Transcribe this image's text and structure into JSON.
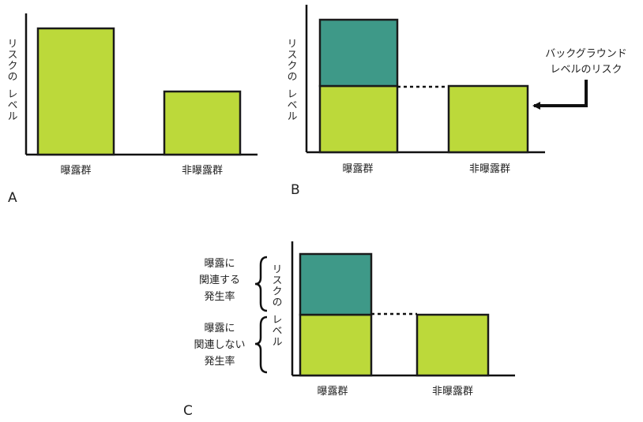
{
  "colors": {
    "exposure_unrelated": "#bcd93a",
    "exposure_related": "#3e9988",
    "axis": "#111111",
    "bar_stroke": "#1a1a1a"
  },
  "panels": [
    {
      "id": "A",
      "letter": "A",
      "ylabel_line1": "リスクの",
      "ylabel_line2": "レベル",
      "categories": [
        "曝露群",
        "非曝露群"
      ],
      "bars": [
        {
          "category": "曝露群",
          "background": 1.0,
          "attributable": 0
        },
        {
          "category": "非曝露群",
          "background": 0.5,
          "attributable": 0
        }
      ]
    },
    {
      "id": "B",
      "letter": "B",
      "ylabel_line1": "リスクの",
      "ylabel_line2": "レベル",
      "categories": [
        "曝露群",
        "非曝露群"
      ],
      "bars": [
        {
          "category": "曝露群",
          "background": 0.5,
          "attributable": 0.5
        },
        {
          "category": "非曝露群",
          "background": 0.5,
          "attributable": 0
        }
      ],
      "callout_line1": "バックグラウンド",
      "callout_line2": "レベルのリスク"
    },
    {
      "id": "C",
      "letter": "C",
      "ylabel_line1": "リスクの",
      "ylabel_line2": "レベル",
      "categories": [
        "曝露群",
        "非曝露群"
      ],
      "bars": [
        {
          "category": "曝露群",
          "background": 0.5,
          "attributable": 0.5
        },
        {
          "category": "非曝露群",
          "background": 0.5,
          "attributable": 0
        }
      ],
      "brace_top_lines": [
        "曝露に",
        "関連する",
        "発生率"
      ],
      "brace_bottom_lines": [
        "曝露に",
        "関連しない",
        "発生率"
      ]
    }
  ]
}
